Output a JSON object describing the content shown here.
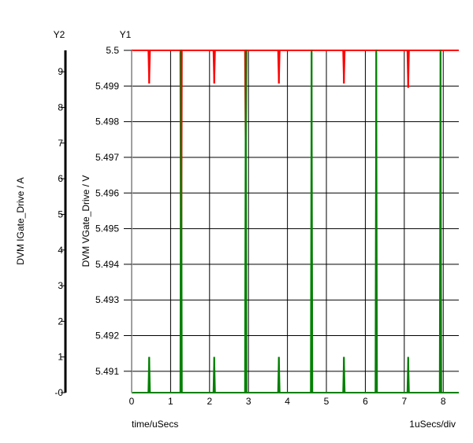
{
  "chart_data": {
    "type": "line",
    "y1_label": "Y1",
    "y2_label": "Y2",
    "y1_axis_title": "DVM VGate_Drive / V",
    "y2_axis_title": "DVM IGate_Drive / A",
    "x_axis_title": "time/uSecs",
    "x_scale_note": "1uSecs/div",
    "x_ticks": [
      "0",
      "1",
      "2",
      "3",
      "4",
      "5",
      "6",
      "7",
      "8"
    ],
    "y1_ticks": [
      "5.5",
      "5.499",
      "5.498",
      "5.497",
      "5.496",
      "5.495",
      "5.494",
      "5.493",
      "5.492",
      "5.491"
    ],
    "y2_ticks": [
      "9",
      "8",
      "7",
      "6",
      "5",
      "4",
      "3",
      "2",
      "1",
      "-0"
    ],
    "xlim": [
      0,
      8.4
    ],
    "y1lim": [
      5.4904,
      5.5
    ],
    "y2lim": [
      0,
      9.6
    ],
    "grid": true,
    "series": [
      {
        "axis": "y1",
        "color": "#ff0000",
        "baseline": 5.5,
        "spikes": [
          {
            "x": 0.45,
            "y": 5.49907
          },
          {
            "x": 1.27,
            "y": 5.4908
          },
          {
            "x": 2.12,
            "y": 5.49907
          },
          {
            "x": 2.93,
            "y": 5.4966
          },
          {
            "x": 3.78,
            "y": 5.49907
          },
          {
            "x": 5.45,
            "y": 5.49907
          },
          {
            "x": 7.1,
            "y": 5.49895
          }
        ]
      },
      {
        "axis": "y2",
        "color": "#008000",
        "baseline": 0,
        "spikes": [
          {
            "x": 0.45,
            "y": 1.0
          },
          {
            "x": 1.27,
            "y": 9.6
          },
          {
            "x": 2.12,
            "y": 1.0
          },
          {
            "x": 2.93,
            "y": 9.6
          },
          {
            "x": 3.78,
            "y": 1.0
          },
          {
            "x": 4.62,
            "y": 9.6
          },
          {
            "x": 5.45,
            "y": 1.0
          },
          {
            "x": 6.28,
            "y": 9.6
          },
          {
            "x": 7.1,
            "y": 1.0
          },
          {
            "x": 7.93,
            "y": 9.6
          }
        ]
      }
    ]
  }
}
